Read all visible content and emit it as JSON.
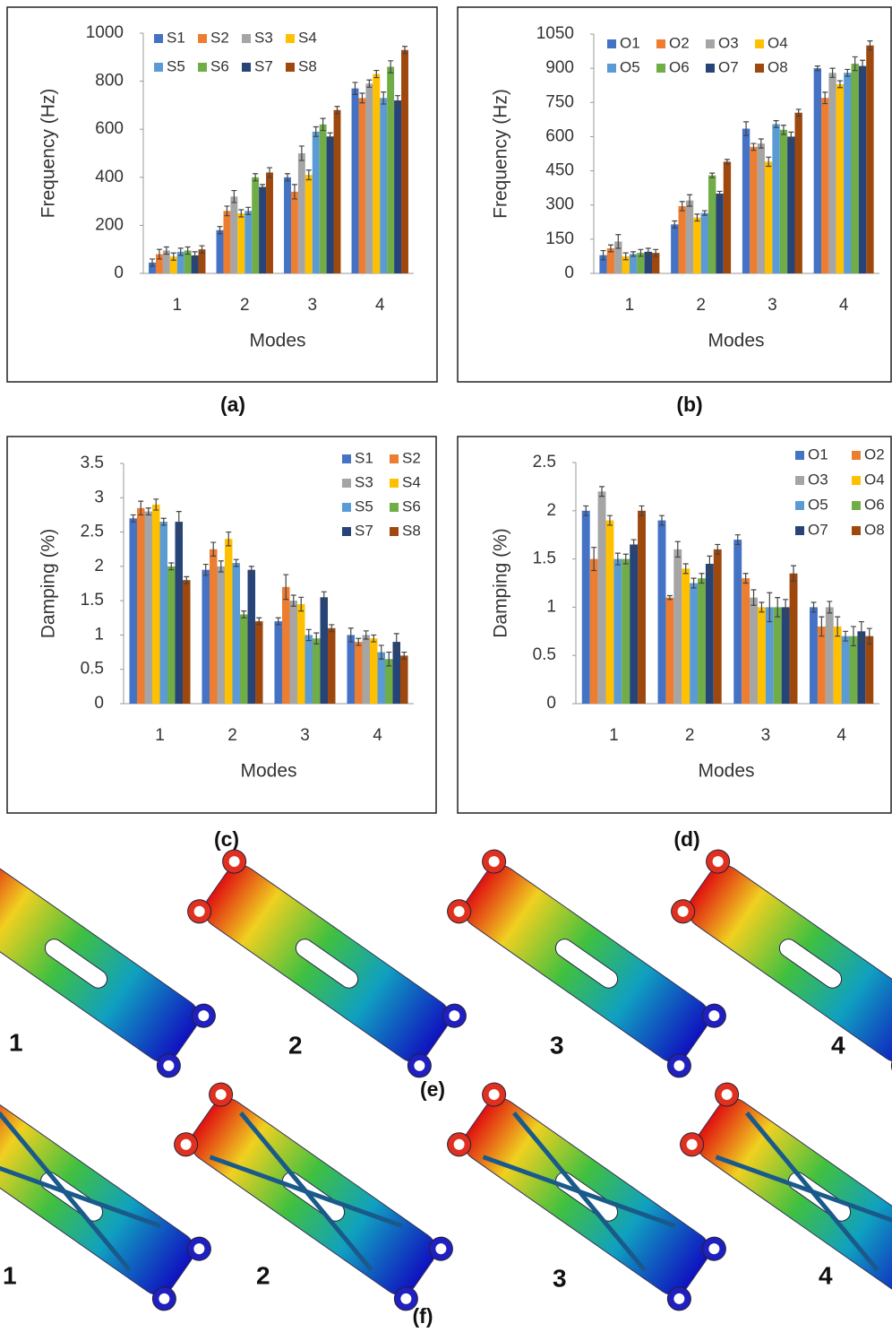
{
  "chart_data": [
    {
      "type": "bar",
      "label": "(a)",
      "y_label": "Frequency (Hz)",
      "x_label": "Modes",
      "categories": [
        "1",
        "2",
        "3",
        "4"
      ],
      "ylim": [
        0,
        1000
      ],
      "yticks": [
        0,
        200,
        400,
        600,
        800,
        1000
      ],
      "legend": "top-left",
      "series": [
        {
          "name": "S1",
          "color": "#4472c4",
          "values": [
            45,
            180,
            400,
            770
          ],
          "errors": [
            15,
            15,
            15,
            25
          ]
        },
        {
          "name": "S2",
          "color": "#ed7d31",
          "values": [
            80,
            260,
            340,
            730
          ],
          "errors": [
            20,
            20,
            30,
            20
          ]
        },
        {
          "name": "S3",
          "color": "#a5a5a5",
          "values": [
            95,
            320,
            500,
            790
          ],
          "errors": [
            15,
            25,
            30,
            15
          ]
        },
        {
          "name": "S4",
          "color": "#ffc000",
          "values": [
            70,
            250,
            410,
            830
          ],
          "errors": [
            15,
            15,
            20,
            15
          ]
        },
        {
          "name": "S5",
          "color": "#5b9bd5",
          "values": [
            90,
            260,
            590,
            730
          ],
          "errors": [
            15,
            15,
            20,
            25
          ]
        },
        {
          "name": "S6",
          "color": "#70ad47",
          "values": [
            95,
            400,
            620,
            860
          ],
          "errors": [
            15,
            15,
            25,
            25
          ]
        },
        {
          "name": "S7",
          "color": "#264478",
          "values": [
            75,
            360,
            570,
            720
          ],
          "errors": [
            15,
            10,
            15,
            20
          ]
        },
        {
          "name": "S8",
          "color": "#9e480e",
          "values": [
            100,
            420,
            680,
            930
          ],
          "errors": [
            15,
            20,
            15,
            15
          ]
        }
      ]
    },
    {
      "type": "bar",
      "label": "(b)",
      "y_label": "Frequency (Hz)",
      "x_label": "Modes",
      "categories": [
        "1",
        "2",
        "3",
        "4"
      ],
      "ylim": [
        0,
        1050
      ],
      "yticks": [
        0,
        150,
        300,
        450,
        600,
        750,
        900,
        1050
      ],
      "legend": "top-left",
      "series": [
        {
          "name": "O1",
          "color": "#4472c4",
          "values": [
            80,
            215,
            635,
            900
          ],
          "errors": [
            20,
            15,
            30,
            10
          ]
        },
        {
          "name": "O2",
          "color": "#ed7d31",
          "values": [
            110,
            295,
            555,
            770
          ],
          "errors": [
            15,
            20,
            15,
            25
          ]
        },
        {
          "name": "O3",
          "color": "#a5a5a5",
          "values": [
            140,
            320,
            570,
            880
          ],
          "errors": [
            30,
            25,
            20,
            20
          ]
        },
        {
          "name": "O4",
          "color": "#ffc000",
          "values": [
            75,
            245,
            490,
            830
          ],
          "errors": [
            15,
            15,
            20,
            15
          ]
        },
        {
          "name": "O5",
          "color": "#5b9bd5",
          "values": [
            85,
            265,
            655,
            880
          ],
          "errors": [
            10,
            10,
            15,
            15
          ]
        },
        {
          "name": "O6",
          "color": "#70ad47",
          "values": [
            90,
            430,
            630,
            920
          ],
          "errors": [
            15,
            10,
            20,
            30
          ]
        },
        {
          "name": "O7",
          "color": "#264478",
          "values": [
            95,
            350,
            600,
            910
          ],
          "errors": [
            15,
            10,
            20,
            25
          ]
        },
        {
          "name": "O8",
          "color": "#9e480e",
          "values": [
            90,
            490,
            705,
            1000
          ],
          "errors": [
            15,
            10,
            15,
            20
          ]
        }
      ]
    },
    {
      "type": "bar",
      "label": "(c)",
      "y_label": "Damping (%)",
      "x_label": "Modes",
      "categories": [
        "1",
        "2",
        "3",
        "4"
      ],
      "ylim": [
        0,
        3.5
      ],
      "yticks": [
        0,
        0.5,
        1,
        1.5,
        2,
        2.5,
        3,
        3.5
      ],
      "legend": "top-right",
      "series": [
        {
          "name": "S1",
          "color": "#4472c4",
          "values": [
            2.7,
            1.95,
            1.2,
            1.0
          ],
          "errors": [
            0.05,
            0.08,
            0.05,
            0.1
          ]
        },
        {
          "name": "S2",
          "color": "#ed7d31",
          "values": [
            2.85,
            2.25,
            1.7,
            0.9
          ],
          "errors": [
            0.1,
            0.1,
            0.18,
            0.05
          ]
        },
        {
          "name": "S3",
          "color": "#a5a5a5",
          "values": [
            2.8,
            2.0,
            1.5,
            1.0
          ],
          "errors": [
            0.05,
            0.08,
            0.08,
            0.06
          ]
        },
        {
          "name": "S4",
          "color": "#ffc000",
          "values": [
            2.9,
            2.4,
            1.45,
            0.95
          ],
          "errors": [
            0.08,
            0.1,
            0.1,
            0.05
          ]
        },
        {
          "name": "S5",
          "color": "#5b9bd5",
          "values": [
            2.65,
            2.05,
            1.0,
            0.75
          ],
          "errors": [
            0.05,
            0.05,
            0.08,
            0.1
          ]
        },
        {
          "name": "S6",
          "color": "#70ad47",
          "values": [
            2.0,
            1.3,
            0.95,
            0.65
          ],
          "errors": [
            0.05,
            0.05,
            0.08,
            0.1
          ]
        },
        {
          "name": "S7",
          "color": "#264478",
          "values": [
            2.65,
            1.95,
            1.55,
            0.9
          ],
          "errors": [
            0.15,
            0.05,
            0.08,
            0.12
          ]
        },
        {
          "name": "S8",
          "color": "#9e480e",
          "values": [
            1.8,
            1.2,
            1.1,
            0.7
          ],
          "errors": [
            0.05,
            0.05,
            0.05,
            0.05
          ]
        }
      ]
    },
    {
      "type": "bar",
      "label": "(d)",
      "y_label": "Damping (%)",
      "x_label": "Modes",
      "categories": [
        "1",
        "2",
        "3",
        "4"
      ],
      "ylim": [
        0,
        2.5
      ],
      "yticks": [
        0,
        0.5,
        1,
        1.5,
        2,
        2.5
      ],
      "legend": "top-right",
      "series": [
        {
          "name": "O1",
          "color": "#4472c4",
          "values": [
            2.0,
            1.9,
            1.7,
            1.0
          ],
          "errors": [
            0.05,
            0.05,
            0.05,
            0.05
          ]
        },
        {
          "name": "O2",
          "color": "#ed7d31",
          "values": [
            1.5,
            1.1,
            1.3,
            0.8
          ],
          "errors": [
            0.12,
            0.02,
            0.05,
            0.1
          ]
        },
        {
          "name": "O3",
          "color": "#a5a5a5",
          "values": [
            2.2,
            1.6,
            1.1,
            1.0
          ],
          "errors": [
            0.05,
            0.08,
            0.08,
            0.06
          ]
        },
        {
          "name": "O4",
          "color": "#ffc000",
          "values": [
            1.9,
            1.4,
            1.0,
            0.8
          ],
          "errors": [
            0.05,
            0.05,
            0.05,
            0.1
          ]
        },
        {
          "name": "O5",
          "color": "#5b9bd5",
          "values": [
            1.5,
            1.25,
            1.0,
            0.7
          ],
          "errors": [
            0.06,
            0.05,
            0.15,
            0.05
          ]
        },
        {
          "name": "O6",
          "color": "#70ad47",
          "values": [
            1.5,
            1.3,
            1.0,
            0.7
          ],
          "errors": [
            0.05,
            0.05,
            0.1,
            0.1
          ]
        },
        {
          "name": "O7",
          "color": "#264478",
          "values": [
            1.65,
            1.45,
            1.0,
            0.75
          ],
          "errors": [
            0.05,
            0.08,
            0.08,
            0.1
          ]
        },
        {
          "name": "O8",
          "color": "#9e480e",
          "values": [
            2.0,
            1.6,
            1.35,
            0.7
          ],
          "errors": [
            0.05,
            0.05,
            0.08,
            0.08
          ]
        }
      ]
    }
  ],
  "mode_shapes": [
    {
      "label": "(e)",
      "modes": [
        "1",
        "2",
        "3",
        "4"
      ]
    },
    {
      "label": "(f)",
      "modes": [
        "1",
        "2",
        "3",
        "4"
      ]
    }
  ]
}
